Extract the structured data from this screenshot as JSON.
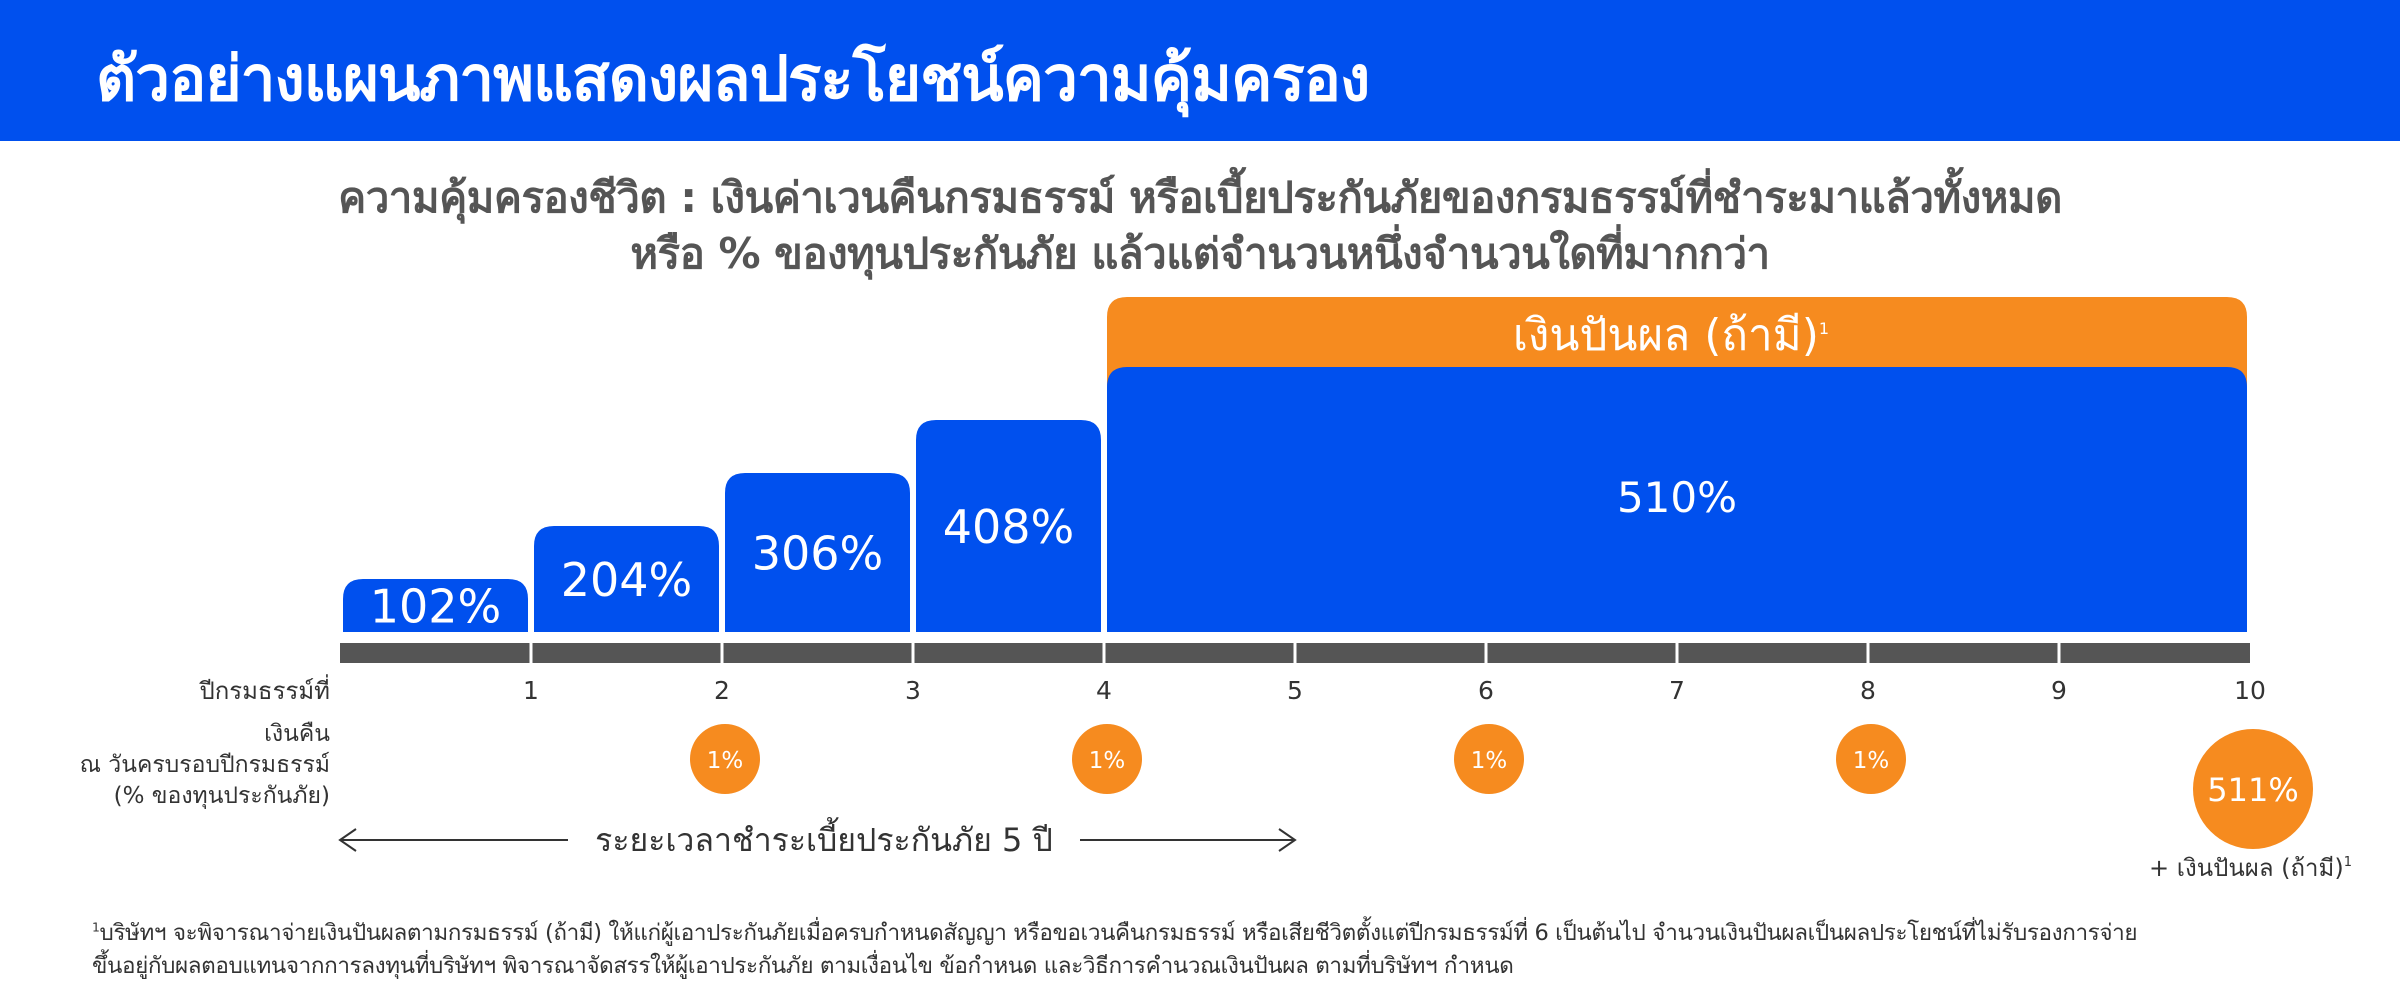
{
  "header": {
    "title": "ตัวอย่างแผนภาพแสดงผลประโยชน์ความคุ้มครอง"
  },
  "subtitle": {
    "line1": "ความคุ้มครองชีวิต : เงินค่าเวนคืนกรมธรรม์ หรือเบี้ยประกันภัยของกรมธรรม์ที่ชำระมาแล้วทั้งหมด",
    "line2": "หรือ % ของทุนประกันภัย แล้วแต่จำนวนหนึ่งจำนวนใดที่มากกว่า"
  },
  "chart_data": {
    "type": "bar",
    "x_axis_label": "ปีกรมธรรม์ที่",
    "years": [
      "1",
      "2",
      "3",
      "4",
      "5",
      "6",
      "7",
      "8",
      "9",
      "10"
    ],
    "coverage": {
      "periods": [
        "1",
        "2",
        "3",
        "4",
        "5-10"
      ],
      "values": [
        102,
        204,
        306,
        408,
        510
      ],
      "labels": [
        "102%",
        "204%",
        "306%",
        "408%",
        "510%"
      ],
      "color": "#0050EE"
    },
    "dividend": {
      "label": "เงินปันผล (ถ้ามี)",
      "from_year": 5,
      "to_year": 10,
      "color": "#F68B1F"
    },
    "cash_back": {
      "row_label_lines": [
        "เงินคืน",
        "ณ วันครบรอบปีกรมธรรม์",
        "(% ของทุนประกันภัย)"
      ],
      "points": [
        {
          "year": 2,
          "label": "1%"
        },
        {
          "year": 4,
          "label": "1%"
        },
        {
          "year": 6,
          "label": "1%"
        },
        {
          "year": 8,
          "label": "1%"
        },
        {
          "year": 10,
          "label": "511%"
        }
      ],
      "maturity_note": "+ เงินปันผล (ถ้ามี)",
      "color": "#F68B1F"
    },
    "payment_period": {
      "label": "ระยะเวลาชำระเบี้ยประกันภัย 5 ปี",
      "from_year": 0,
      "to_year": 5
    }
  },
  "footnote": {
    "marker": "1",
    "line1": "บริษัทฯ จะพิจารณาจ่ายเงินปันผลตามกรมธรรม์ (ถ้ามี) ให้แก่ผู้เอาประกันภัยเมื่อครบกำหนดสัญญา หรือขอเวนคืนกรมธรรม์ หรือเสียชีวิตตั้งแต่ปีกรมธรรม์ที่ 6 เป็นต้นไป จำนวนเงินปันผลเป็นผลประโยชน์ที่ไม่รับรองการจ่าย",
    "line2": "ขึ้นอยู่กับผลตอบแทนจากการลงทุนที่บริษัทฯ พิจารณาจัดสรรให้ผู้เอาประกันภัย ตามเงื่อนไข ข้อกำหนด และวิธีการคำนวณเงินปันผล ตามที่บริษัทฯ กำหนด"
  }
}
